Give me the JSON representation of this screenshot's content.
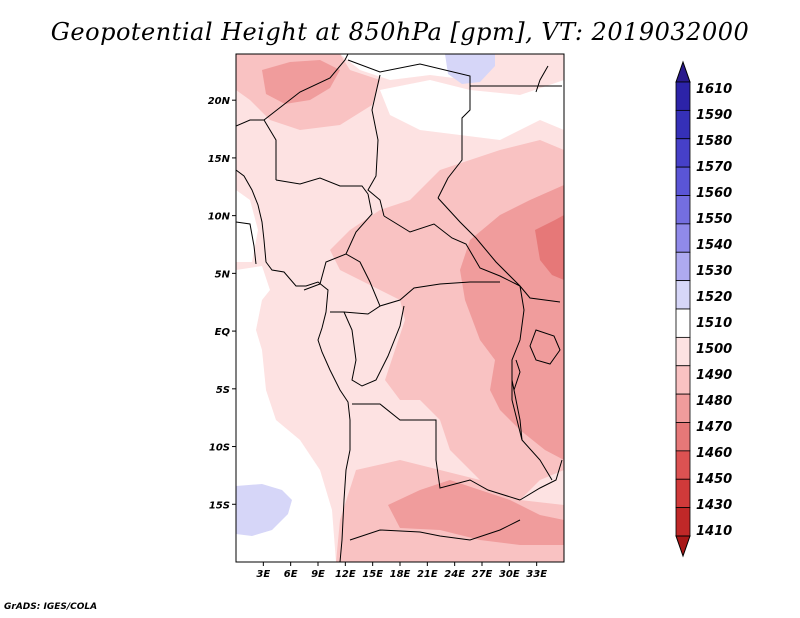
{
  "title": "Geopotential Height at 850hPa [gpm], VT: 2019032000",
  "credit": "GrADS: IGES/COLA",
  "map": {
    "lon_range": [
      0,
      36
    ],
    "lat_range": [
      -20,
      24
    ],
    "lat_ticks": [
      {
        "value": 20,
        "label": "20N"
      },
      {
        "value": 15,
        "label": "15N"
      },
      {
        "value": 10,
        "label": "10N"
      },
      {
        "value": 5,
        "label": "5N"
      },
      {
        "value": 0,
        "label": "EQ"
      },
      {
        "value": -5,
        "label": "5S"
      },
      {
        "value": -10,
        "label": "10S"
      },
      {
        "value": -15,
        "label": "15S"
      }
    ],
    "lon_ticks": [
      {
        "value": 3,
        "label": "3E"
      },
      {
        "value": 6,
        "label": "6E"
      },
      {
        "value": 9,
        "label": "9E"
      },
      {
        "value": 12,
        "label": "12E"
      },
      {
        "value": 15,
        "label": "15E"
      },
      {
        "value": 18,
        "label": "18E"
      },
      {
        "value": 21,
        "label": "21E"
      },
      {
        "value": 24,
        "label": "24E"
      },
      {
        "value": 27,
        "label": "27E"
      },
      {
        "value": 30,
        "label": "30E"
      },
      {
        "value": 33,
        "label": "33E"
      }
    ]
  },
  "colorbar": {
    "levels": [
      {
        "label": "1610",
        "color": "#2a1a8c"
      },
      {
        "label": "1590",
        "color": "#2c23a8"
      },
      {
        "label": "1580",
        "color": "#3530b8"
      },
      {
        "label": "1570",
        "color": "#4640c8"
      },
      {
        "label": "1560",
        "color": "#5a55d6"
      },
      {
        "label": "1550",
        "color": "#746ee0"
      },
      {
        "label": "1540",
        "color": "#908aea"
      },
      {
        "label": "1530",
        "color": "#aeaaf0"
      },
      {
        "label": "1520",
        "color": "#d6d6f8"
      },
      {
        "label": "1510",
        "color": "#ffffff"
      },
      {
        "label": "1500",
        "color": "#fde2e2"
      },
      {
        "label": "1490",
        "color": "#f9c2c2"
      },
      {
        "label": "1480",
        "color": "#f09c9c"
      },
      {
        "label": "1470",
        "color": "#e67878"
      },
      {
        "label": "1460",
        "color": "#dc5252"
      },
      {
        "label": "1450",
        "color": "#d03a3a"
      },
      {
        "label": "1430",
        "color": "#c02828"
      },
      {
        "label": "1410",
        "color": "#a81818"
      }
    ]
  }
}
